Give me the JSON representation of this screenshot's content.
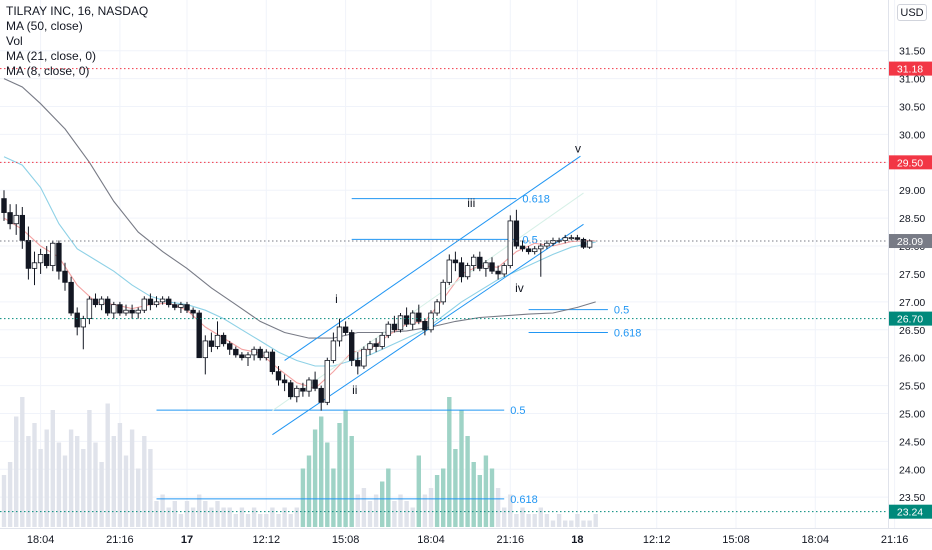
{
  "chart_data": {
    "type": "candlestick",
    "title": "TILRAY INC, 16, NASDAQ",
    "indicators": [
      "MA (50, close)",
      "Vol",
      "MA (21, close, 0)",
      "MA (8, close, 0)"
    ],
    "currency": "USD",
    "ylim": [
      23.1,
      32.4
    ],
    "price_ticks": [
      23.5,
      24.0,
      24.5,
      25.0,
      25.5,
      26.0,
      26.5,
      27.0,
      27.5,
      28.0,
      28.5,
      29.0,
      29.5,
      30.0,
      30.5,
      31.0,
      31.5
    ],
    "price_tick_labels": [
      "23.50",
      "24.00",
      "24.50",
      "25.00",
      "25.50",
      "26.00",
      "26.50",
      "27.00",
      "27.50",
      "28.00",
      "28.50",
      "29.00",
      "29.50",
      "30.00",
      "30.50",
      "31.00",
      "31.50"
    ],
    "time_labels": [
      {
        "i": 6,
        "label": "18:04",
        "bold": false
      },
      {
        "i": 19,
        "label": "21:16",
        "bold": false
      },
      {
        "i": 30,
        "label": "17",
        "bold": true
      },
      {
        "i": 43,
        "label": "12:12",
        "bold": false
      },
      {
        "i": 56,
        "label": "15:08",
        "bold": false
      },
      {
        "i": 70,
        "label": "18:04",
        "bold": false
      },
      {
        "i": 83,
        "label": "21:16",
        "bold": false
      },
      {
        "i": 94,
        "label": "18",
        "bold": true
      },
      {
        "i": 107,
        "label": "12:12",
        "bold": false
      },
      {
        "i": 120,
        "label": "15:08",
        "bold": false
      },
      {
        "i": 133,
        "label": "18:04",
        "bold": false
      },
      {
        "i": 146,
        "label": "21:16",
        "bold": false
      }
    ],
    "price_markers": [
      {
        "value": 31.18,
        "label": "31.18",
        "color": "#f23645"
      },
      {
        "value": 29.5,
        "label": "29.50",
        "color": "#f23645"
      },
      {
        "value": 28.09,
        "label": "28.09",
        "color": "#787b86"
      },
      {
        "value": 26.7,
        "label": "26.70",
        "color": "#00897b"
      },
      {
        "value": 23.24,
        "label": "23.24",
        "color": "#00897b"
      }
    ],
    "candles": [
      {
        "o": 28.85,
        "h": 29.0,
        "l": 28.45,
        "c": 28.6
      },
      {
        "o": 28.6,
        "h": 28.75,
        "l": 28.3,
        "c": 28.4
      },
      {
        "o": 28.4,
        "h": 28.75,
        "l": 28.2,
        "c": 28.55
      },
      {
        "o": 28.55,
        "h": 28.7,
        "l": 27.95,
        "c": 28.1
      },
      {
        "o": 28.1,
        "h": 28.35,
        "l": 27.4,
        "c": 27.6
      },
      {
        "o": 27.6,
        "h": 27.9,
        "l": 27.3,
        "c": 27.7
      },
      {
        "o": 27.7,
        "h": 27.95,
        "l": 27.5,
        "c": 27.85
      },
      {
        "o": 27.85,
        "h": 28.0,
        "l": 27.6,
        "c": 27.65
      },
      {
        "o": 27.65,
        "h": 28.1,
        "l": 27.55,
        "c": 28.05
      },
      {
        "o": 28.05,
        "h": 28.1,
        "l": 27.4,
        "c": 27.55
      },
      {
        "o": 27.55,
        "h": 27.7,
        "l": 27.2,
        "c": 27.35
      },
      {
        "o": 27.35,
        "h": 27.45,
        "l": 26.75,
        "c": 26.8
      },
      {
        "o": 26.8,
        "h": 26.9,
        "l": 26.4,
        "c": 26.55
      },
      {
        "o": 26.55,
        "h": 26.75,
        "l": 26.15,
        "c": 26.7
      },
      {
        "o": 26.7,
        "h": 27.1,
        "l": 26.6,
        "c": 27.05
      },
      {
        "o": 27.05,
        "h": 27.15,
        "l": 26.9,
        "c": 26.95
      },
      {
        "o": 26.95,
        "h": 27.1,
        "l": 26.85,
        "c": 27.05
      },
      {
        "o": 27.05,
        "h": 27.1,
        "l": 26.75,
        "c": 26.8
      },
      {
        "o": 26.8,
        "h": 27.0,
        "l": 26.7,
        "c": 26.95
      },
      {
        "o": 26.95,
        "h": 27.0,
        "l": 26.75,
        "c": 26.8
      },
      {
        "o": 26.8,
        "h": 26.95,
        "l": 26.75,
        "c": 26.85
      },
      {
        "o": 26.85,
        "h": 26.95,
        "l": 26.7,
        "c": 26.8
      },
      {
        "o": 26.8,
        "h": 26.9,
        "l": 26.7,
        "c": 26.85
      },
      {
        "o": 26.85,
        "h": 27.1,
        "l": 26.8,
        "c": 27.05
      },
      {
        "o": 27.05,
        "h": 27.15,
        "l": 26.85,
        "c": 26.95
      },
      {
        "o": 26.95,
        "h": 27.1,
        "l": 26.9,
        "c": 27.0
      },
      {
        "o": 27.0,
        "h": 27.1,
        "l": 26.95,
        "c": 27.05
      },
      {
        "o": 27.05,
        "h": 27.1,
        "l": 26.9,
        "c": 26.95
      },
      {
        "o": 26.95,
        "h": 27.0,
        "l": 26.85,
        "c": 26.9
      },
      {
        "o": 26.9,
        "h": 27.0,
        "l": 26.8,
        "c": 26.95
      },
      {
        "o": 26.95,
        "h": 27.0,
        "l": 26.8,
        "c": 26.85
      },
      {
        "o": 26.85,
        "h": 26.9,
        "l": 26.7,
        "c": 26.8
      },
      {
        "o": 26.8,
        "h": 26.85,
        "l": 26.0,
        "c": 26.0
      },
      {
        "o": 26.0,
        "h": 26.4,
        "l": 25.7,
        "c": 26.3
      },
      {
        "o": 26.3,
        "h": 26.45,
        "l": 26.1,
        "c": 26.2
      },
      {
        "o": 26.2,
        "h": 26.65,
        "l": 26.15,
        "c": 26.4
      },
      {
        "o": 26.4,
        "h": 26.45,
        "l": 26.2,
        "c": 26.25
      },
      {
        "o": 26.25,
        "h": 26.3,
        "l": 26.05,
        "c": 26.15
      },
      {
        "o": 26.15,
        "h": 26.2,
        "l": 26.0,
        "c": 26.05
      },
      {
        "o": 26.05,
        "h": 26.1,
        "l": 25.95,
        "c": 26.0
      },
      {
        "o": 26.0,
        "h": 26.1,
        "l": 25.85,
        "c": 26.05
      },
      {
        "o": 26.05,
        "h": 26.2,
        "l": 25.95,
        "c": 26.15
      },
      {
        "o": 26.15,
        "h": 26.2,
        "l": 25.95,
        "c": 26.0
      },
      {
        "o": 26.0,
        "h": 26.15,
        "l": 25.95,
        "c": 26.1
      },
      {
        "o": 26.1,
        "h": 26.15,
        "l": 25.7,
        "c": 25.75
      },
      {
        "o": 25.75,
        "h": 25.85,
        "l": 25.5,
        "c": 25.6
      },
      {
        "o": 25.6,
        "h": 25.7,
        "l": 25.4,
        "c": 25.55
      },
      {
        "o": 25.55,
        "h": 25.6,
        "l": 25.25,
        "c": 25.3
      },
      {
        "o": 25.3,
        "h": 25.5,
        "l": 25.2,
        "c": 25.45
      },
      {
        "o": 25.45,
        "h": 25.55,
        "l": 25.3,
        "c": 25.4
      },
      {
        "o": 25.4,
        "h": 25.65,
        "l": 25.3,
        "c": 25.6
      },
      {
        "o": 25.6,
        "h": 25.75,
        "l": 25.4,
        "c": 25.45
      },
      {
        "o": 25.45,
        "h": 25.5,
        "l": 25.05,
        "c": 25.2
      },
      {
        "o": 25.2,
        "h": 26.0,
        "l": 25.15,
        "c": 25.95
      },
      {
        "o": 25.95,
        "h": 26.45,
        "l": 25.9,
        "c": 26.3
      },
      {
        "o": 26.3,
        "h": 26.7,
        "l": 26.2,
        "c": 26.55
      },
      {
        "o": 26.55,
        "h": 26.65,
        "l": 26.4,
        "c": 26.45
      },
      {
        "o": 26.45,
        "h": 26.5,
        "l": 25.85,
        "c": 25.95
      },
      {
        "o": 25.95,
        "h": 26.1,
        "l": 25.7,
        "c": 25.85
      },
      {
        "o": 25.85,
        "h": 26.2,
        "l": 25.8,
        "c": 26.15
      },
      {
        "o": 26.15,
        "h": 26.3,
        "l": 26.05,
        "c": 26.25
      },
      {
        "o": 26.25,
        "h": 26.35,
        "l": 26.1,
        "c": 26.2
      },
      {
        "o": 26.2,
        "h": 26.45,
        "l": 26.15,
        "c": 26.4
      },
      {
        "o": 26.4,
        "h": 26.65,
        "l": 26.35,
        "c": 26.6
      },
      {
        "o": 26.6,
        "h": 26.75,
        "l": 26.45,
        "c": 26.5
      },
      {
        "o": 26.5,
        "h": 26.8,
        "l": 26.45,
        "c": 26.75
      },
      {
        "o": 26.75,
        "h": 26.9,
        "l": 26.55,
        "c": 26.6
      },
      {
        "o": 26.6,
        "h": 26.85,
        "l": 26.5,
        "c": 26.8
      },
      {
        "o": 26.8,
        "h": 26.95,
        "l": 26.6,
        "c": 26.65
      },
      {
        "o": 26.65,
        "h": 26.7,
        "l": 26.4,
        "c": 26.5
      },
      {
        "o": 26.5,
        "h": 26.85,
        "l": 26.45,
        "c": 26.8
      },
      {
        "o": 26.8,
        "h": 27.05,
        "l": 26.75,
        "c": 27.0
      },
      {
        "o": 27.0,
        "h": 27.4,
        "l": 26.95,
        "c": 27.35
      },
      {
        "o": 27.35,
        "h": 27.85,
        "l": 27.3,
        "c": 27.75
      },
      {
        "o": 27.75,
        "h": 27.9,
        "l": 27.55,
        "c": 27.7
      },
      {
        "o": 27.7,
        "h": 27.8,
        "l": 27.35,
        "c": 27.45
      },
      {
        "o": 27.45,
        "h": 27.7,
        "l": 27.4,
        "c": 27.65
      },
      {
        "o": 27.65,
        "h": 27.85,
        "l": 27.55,
        "c": 27.8
      },
      {
        "o": 27.8,
        "h": 27.9,
        "l": 27.55,
        "c": 27.6
      },
      {
        "o": 27.6,
        "h": 27.75,
        "l": 27.45,
        "c": 27.7
      },
      {
        "o": 27.7,
        "h": 27.8,
        "l": 27.5,
        "c": 27.55
      },
      {
        "o": 27.55,
        "h": 27.65,
        "l": 27.4,
        "c": 27.5
      },
      {
        "o": 27.5,
        "h": 27.7,
        "l": 27.45,
        "c": 27.65
      },
      {
        "o": 27.65,
        "h": 28.55,
        "l": 27.6,
        "c": 28.45
      },
      {
        "o": 28.45,
        "h": 28.65,
        "l": 27.95,
        "c": 28.0
      },
      {
        "o": 28.0,
        "h": 28.1,
        "l": 27.9,
        "c": 27.95
      },
      {
        "o": 27.95,
        "h": 28.0,
        "l": 27.85,
        "c": 27.9
      },
      {
        "o": 27.9,
        "h": 28.0,
        "l": 27.85,
        "c": 27.95
      },
      {
        "o": 27.95,
        "h": 28.05,
        "l": 27.45,
        "c": 28.0
      },
      {
        "o": 28.0,
        "h": 28.1,
        "l": 27.95,
        "c": 28.05
      },
      {
        "o": 28.05,
        "h": 28.15,
        "l": 28.0,
        "c": 28.1
      },
      {
        "o": 28.1,
        "h": 28.15,
        "l": 28.05,
        "c": 28.1
      },
      {
        "o": 28.1,
        "h": 28.2,
        "l": 28.05,
        "c": 28.15
      },
      {
        "o": 28.15,
        "h": 28.2,
        "l": 28.1,
        "c": 28.15
      },
      {
        "o": 28.15,
        "h": 28.2,
        "l": 28.1,
        "c": 28.12
      },
      {
        "o": 28.12,
        "h": 28.15,
        "l": 27.95,
        "c": 27.98
      },
      {
        "o": 27.98,
        "h": 28.12,
        "l": 27.95,
        "c": 28.09
      }
    ],
    "volume": [
      8,
      10,
      17,
      20,
      14,
      16,
      12,
      15,
      18,
      13,
      11,
      15,
      14,
      12,
      18,
      13,
      10,
      19,
      14,
      16,
      11,
      15,
      9,
      14,
      12,
      4,
      5,
      3,
      4,
      2,
      4,
      3,
      5,
      4,
      3,
      4,
      3,
      3,
      2,
      3,
      2,
      3,
      2,
      2,
      3,
      2,
      3,
      2,
      3,
      9,
      11,
      15,
      17,
      13,
      9,
      16,
      18,
      14,
      5,
      6,
      4,
      5,
      7,
      9,
      4,
      5,
      4,
      3,
      11,
      5,
      6,
      8,
      9,
      20,
      12,
      18,
      14,
      10,
      8,
      11,
      9,
      6,
      3,
      5,
      2,
      3,
      2,
      2,
      3,
      2,
      1,
      2,
      1,
      1,
      2,
      1,
      1,
      2
    ],
    "ma50_points": [
      [
        0,
        31.0
      ],
      [
        3,
        30.85
      ],
      [
        6,
        30.55
      ],
      [
        10,
        30.1
      ],
      [
        14,
        29.5
      ],
      [
        18,
        28.8
      ],
      [
        22,
        28.25
      ],
      [
        26,
        27.9
      ],
      [
        30,
        27.6
      ],
      [
        34,
        27.25
      ],
      [
        38,
        26.95
      ],
      [
        42,
        26.65
      ],
      [
        46,
        26.45
      ],
      [
        50,
        26.35
      ],
      [
        54,
        26.35
      ],
      [
        58,
        26.45
      ],
      [
        62,
        26.45
      ],
      [
        66,
        26.48
      ],
      [
        70,
        26.55
      ],
      [
        74,
        26.65
      ],
      [
        78,
        26.72
      ],
      [
        82,
        26.75
      ],
      [
        86,
        26.78
      ],
      [
        90,
        26.8
      ],
      [
        94,
        26.9
      ],
      [
        97,
        27.0
      ]
    ],
    "ma21_points": [
      [
        0,
        29.6
      ],
      [
        3,
        29.45
      ],
      [
        6,
        29.05
      ],
      [
        9,
        28.4
      ],
      [
        12,
        27.95
      ],
      [
        15,
        27.75
      ],
      [
        18,
        27.55
      ],
      [
        21,
        27.3
      ],
      [
        24,
        27.1
      ],
      [
        27,
        27.0
      ],
      [
        30,
        26.95
      ],
      [
        33,
        26.85
      ],
      [
        36,
        26.7
      ],
      [
        39,
        26.5
      ],
      [
        42,
        26.3
      ],
      [
        45,
        26.1
      ],
      [
        48,
        25.95
      ],
      [
        51,
        25.85
      ],
      [
        54,
        25.85
      ],
      [
        57,
        25.95
      ],
      [
        60,
        26.05
      ],
      [
        63,
        26.2
      ],
      [
        66,
        26.35
      ],
      [
        69,
        26.5
      ],
      [
        72,
        26.75
      ],
      [
        75,
        27.0
      ],
      [
        78,
        27.2
      ],
      [
        81,
        27.4
      ],
      [
        84,
        27.55
      ],
      [
        87,
        27.7
      ],
      [
        90,
        27.85
      ],
      [
        93,
        27.98
      ],
      [
        96,
        28.05
      ],
      [
        97,
        28.07
      ]
    ],
    "ma8_points": [
      [
        0,
        28.5
      ],
      [
        3,
        28.3
      ],
      [
        6,
        28.0
      ],
      [
        9,
        27.8
      ],
      [
        12,
        27.3
      ],
      [
        15,
        27.0
      ],
      [
        18,
        26.95
      ],
      [
        21,
        26.88
      ],
      [
        24,
        26.95
      ],
      [
        27,
        26.98
      ],
      [
        30,
        26.85
      ],
      [
        33,
        26.55
      ],
      [
        36,
        26.35
      ],
      [
        39,
        26.15
      ],
      [
        42,
        26.08
      ],
      [
        45,
        25.8
      ],
      [
        48,
        25.55
      ],
      [
        51,
        25.45
      ],
      [
        54,
        25.75
      ],
      [
        57,
        26.1
      ],
      [
        60,
        26.15
      ],
      [
        63,
        26.4
      ],
      [
        66,
        26.6
      ],
      [
        69,
        26.65
      ],
      [
        72,
        27.05
      ],
      [
        75,
        27.5
      ],
      [
        78,
        27.65
      ],
      [
        81,
        27.62
      ],
      [
        84,
        27.9
      ],
      [
        87,
        28.05
      ],
      [
        90,
        28.0
      ],
      [
        93,
        28.08
      ],
      [
        96,
        28.1
      ],
      [
        97,
        28.09
      ]
    ],
    "horizontal_levels": [
      {
        "i_start": 57,
        "i_end": 84,
        "value": 28.85,
        "label": "0.618"
      },
      {
        "i_start": 57,
        "i_end": 84,
        "value": 28.12,
        "label": "0.5"
      },
      {
        "i_start": 86,
        "i_end": 99,
        "value": 26.86,
        "label": "0.5"
      },
      {
        "i_start": 86,
        "i_end": 99,
        "value": 26.45,
        "label": "0.618"
      },
      {
        "i_start": 25,
        "i_end": 82,
        "value": 25.06,
        "label": "0.5"
      },
      {
        "i_start": 25,
        "i_end": 82,
        "value": 23.47,
        "label": "0.618"
      }
    ],
    "channel_lines": [
      {
        "i1": 46,
        "p1": 25.95,
        "i2": 94.5,
        "p2": 29.61
      },
      {
        "i1": 44,
        "p1": 24.62,
        "i2": 95,
        "p2": 28.39
      }
    ],
    "projection_line": {
      "i1": 44,
      "p1": 25.05,
      "i2": 95,
      "p2": 28.95
    },
    "wave_labels": [
      {
        "i": 54.5,
        "p": 26.98,
        "label": "i"
      },
      {
        "i": 57.5,
        "p": 25.35,
        "label": "ii"
      },
      {
        "i": 76.6,
        "p": 28.7,
        "label": "iii"
      },
      {
        "i": 84.5,
        "p": 27.18,
        "label": "iv"
      },
      {
        "i": 94.1,
        "p": 29.68,
        "label": "v"
      }
    ]
  }
}
